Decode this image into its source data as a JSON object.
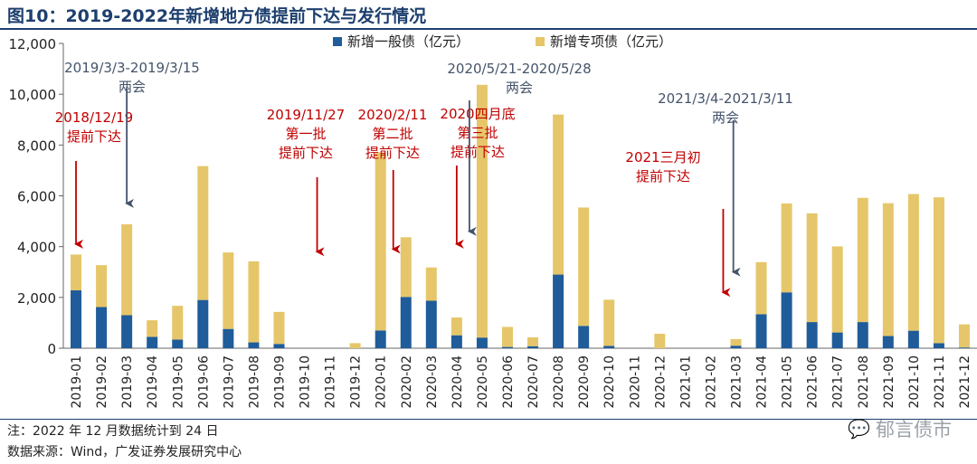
{
  "title": "图10：2019-2022年新增地方债提前下达与发行情况",
  "note": "注：2022 年 12 月数据统计到 24 日",
  "source": "数据来源：Wind，广发证券发展研究中心",
  "watermark": "郁言债市",
  "chart_data": {
    "type": "bar",
    "stacked": true,
    "title": "2019-2022年新增地方债提前下达与发行情况",
    "ylim": [
      0,
      12000
    ],
    "yticks": [
      "0",
      "2,000",
      "4,000",
      "6,000",
      "8,000",
      "10,000",
      "12,000"
    ],
    "legend_position": "top",
    "categories": [
      "2019-01",
      "2019-02",
      "2019-03",
      "2019-04",
      "2019-05",
      "2019-06",
      "2019-07",
      "2019-08",
      "2019-09",
      "2019-10",
      "2019-11",
      "2019-12",
      "2020-01",
      "2020-02",
      "2020-03",
      "2020-04",
      "2020-05",
      "2020-06",
      "2020-07",
      "2020-08",
      "2020-09",
      "2020-10",
      "2020-11",
      "2020-12",
      "2021-01",
      "2021-02",
      "2021-03",
      "2021-04",
      "2021-05",
      "2021-06",
      "2021-07",
      "2021-08",
      "2021-09",
      "2021-10",
      "2021-11",
      "2021-12"
    ],
    "series": [
      {
        "name": "新增一般债（亿元）",
        "color": "#1f5c99",
        "values": [
          2280,
          1620,
          1300,
          450,
          340,
          1900,
          760,
          230,
          170,
          0,
          0,
          0,
          700,
          2020,
          1870,
          510,
          420,
          50,
          80,
          2900,
          880,
          90,
          0,
          0,
          0,
          0,
          100,
          1340,
          2200,
          1030,
          620,
          1030,
          480,
          690,
          200,
          30
        ]
      },
      {
        "name": "新增专项债（亿元）",
        "color": "#e6c66a",
        "values": [
          1410,
          1650,
          3580,
          650,
          1330,
          5270,
          3010,
          3190,
          1260,
          0,
          0,
          200,
          7010,
          2350,
          1310,
          700,
          9950,
          790,
          350,
          6300,
          4660,
          1820,
          0,
          570,
          0,
          0,
          260,
          2050,
          3500,
          4280,
          3390,
          4890,
          5230,
          5380,
          5740,
          910
        ]
      }
    ],
    "annotations": [
      {
        "lines": [
          "2018/12/19",
          "提前下达"
        ],
        "color": "#c00000",
        "arrow_month": 0,
        "arrow_top": 4100
      },
      {
        "lines": [
          "2019/3/3-2019/3/15",
          "两会"
        ],
        "color": "#44546a",
        "arrow_month": 2,
        "arrow_top": 5700
      },
      {
        "lines": [
          "2019/11/27",
          "第一批",
          "提前下达"
        ],
        "color": "#c00000",
        "arrow_month": 9.5,
        "arrow_top": 3800
      },
      {
        "lines": [
          "2020/2/11",
          "第二批",
          "提前下达"
        ],
        "color": "#c00000",
        "arrow_month": 12.5,
        "arrow_top": 3900
      },
      {
        "lines": [
          "2020四月底",
          "第三批",
          "提前下达"
        ],
        "color": "#c00000",
        "arrow_month": 15,
        "arrow_top": 4100
      },
      {
        "lines": [
          "2020/5/21-2020/5/28",
          "两会"
        ],
        "color": "#44546a",
        "arrow_month": 15.5,
        "arrow_top": 4600
      },
      {
        "lines": [
          "2021三月初",
          "提前下达"
        ],
        "color": "#c00000",
        "arrow_month": 25.5,
        "arrow_top": 2200
      },
      {
        "lines": [
          "2021/3/4-2021/3/11",
          "两会"
        ],
        "color": "#44546a",
        "arrow_month": 25.9,
        "arrow_top": 3000
      }
    ]
  }
}
